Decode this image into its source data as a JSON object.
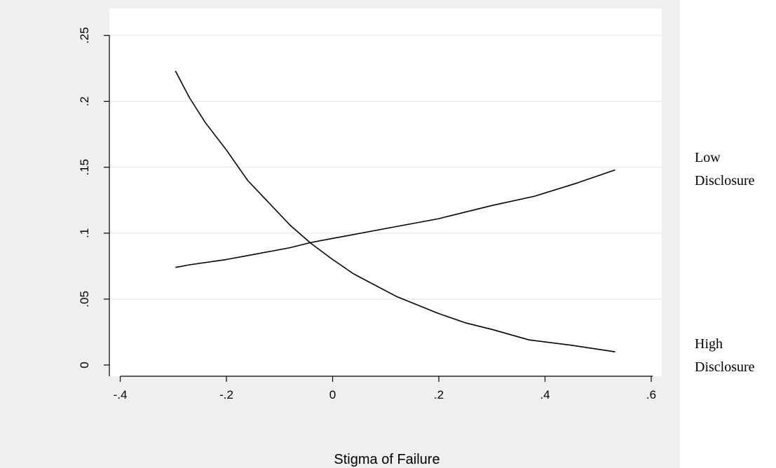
{
  "chart_data": {
    "type": "line",
    "title": "",
    "xlabel": "Stigma of Failure",
    "ylabel": "",
    "xlim": [
      -0.42,
      0.62
    ],
    "ylim": [
      -0.008,
      0.26
    ],
    "x_ticks": [
      {
        "value": -0.4,
        "label": "-.4"
      },
      {
        "value": -0.2,
        "label": "-.2"
      },
      {
        "value": 0,
        "label": "0"
      },
      {
        "value": 0.2,
        "label": ".2"
      },
      {
        "value": 0.4,
        "label": ".4"
      },
      {
        "value": 0.6,
        "label": ".6"
      }
    ],
    "y_ticks": [
      {
        "value": 0,
        "label": "0"
      },
      {
        "value": 0.05,
        "label": ".05"
      },
      {
        "value": 0.1,
        "label": ".1"
      },
      {
        "value": 0.15,
        "label": ".15"
      },
      {
        "value": 0.2,
        "label": ".2"
      },
      {
        "value": 0.25,
        "label": ".25"
      }
    ],
    "grid": true,
    "series": [
      {
        "name": "Low Disclosure",
        "label_lines": [
          "Low",
          "Disclosure"
        ],
        "x": [
          -0.296,
          -0.27,
          -0.2,
          -0.16,
          -0.08,
          -0.04,
          0.0,
          0.04,
          0.12,
          0.2,
          0.22,
          0.26,
          0.3,
          0.38,
          0.46,
          0.532
        ],
        "y": [
          0.074,
          0.076,
          0.08,
          0.083,
          0.089,
          0.093,
          0.096,
          0.099,
          0.105,
          0.111,
          0.113,
          0.117,
          0.121,
          0.128,
          0.138,
          0.148
        ]
      },
      {
        "name": "High Disclosure",
        "label_lines": [
          "High",
          "Disclosure"
        ],
        "x": [
          -0.296,
          -0.27,
          -0.24,
          -0.2,
          -0.16,
          -0.12,
          -0.08,
          -0.04,
          0.0,
          0.04,
          0.12,
          0.2,
          0.25,
          0.3,
          0.37,
          0.45,
          0.532
        ],
        "y": [
          0.223,
          0.203,
          0.184,
          0.163,
          0.14,
          0.123,
          0.106,
          0.092,
          0.08,
          0.069,
          0.052,
          0.039,
          0.032,
          0.027,
          0.019,
          0.015,
          0.01
        ]
      }
    ]
  }
}
